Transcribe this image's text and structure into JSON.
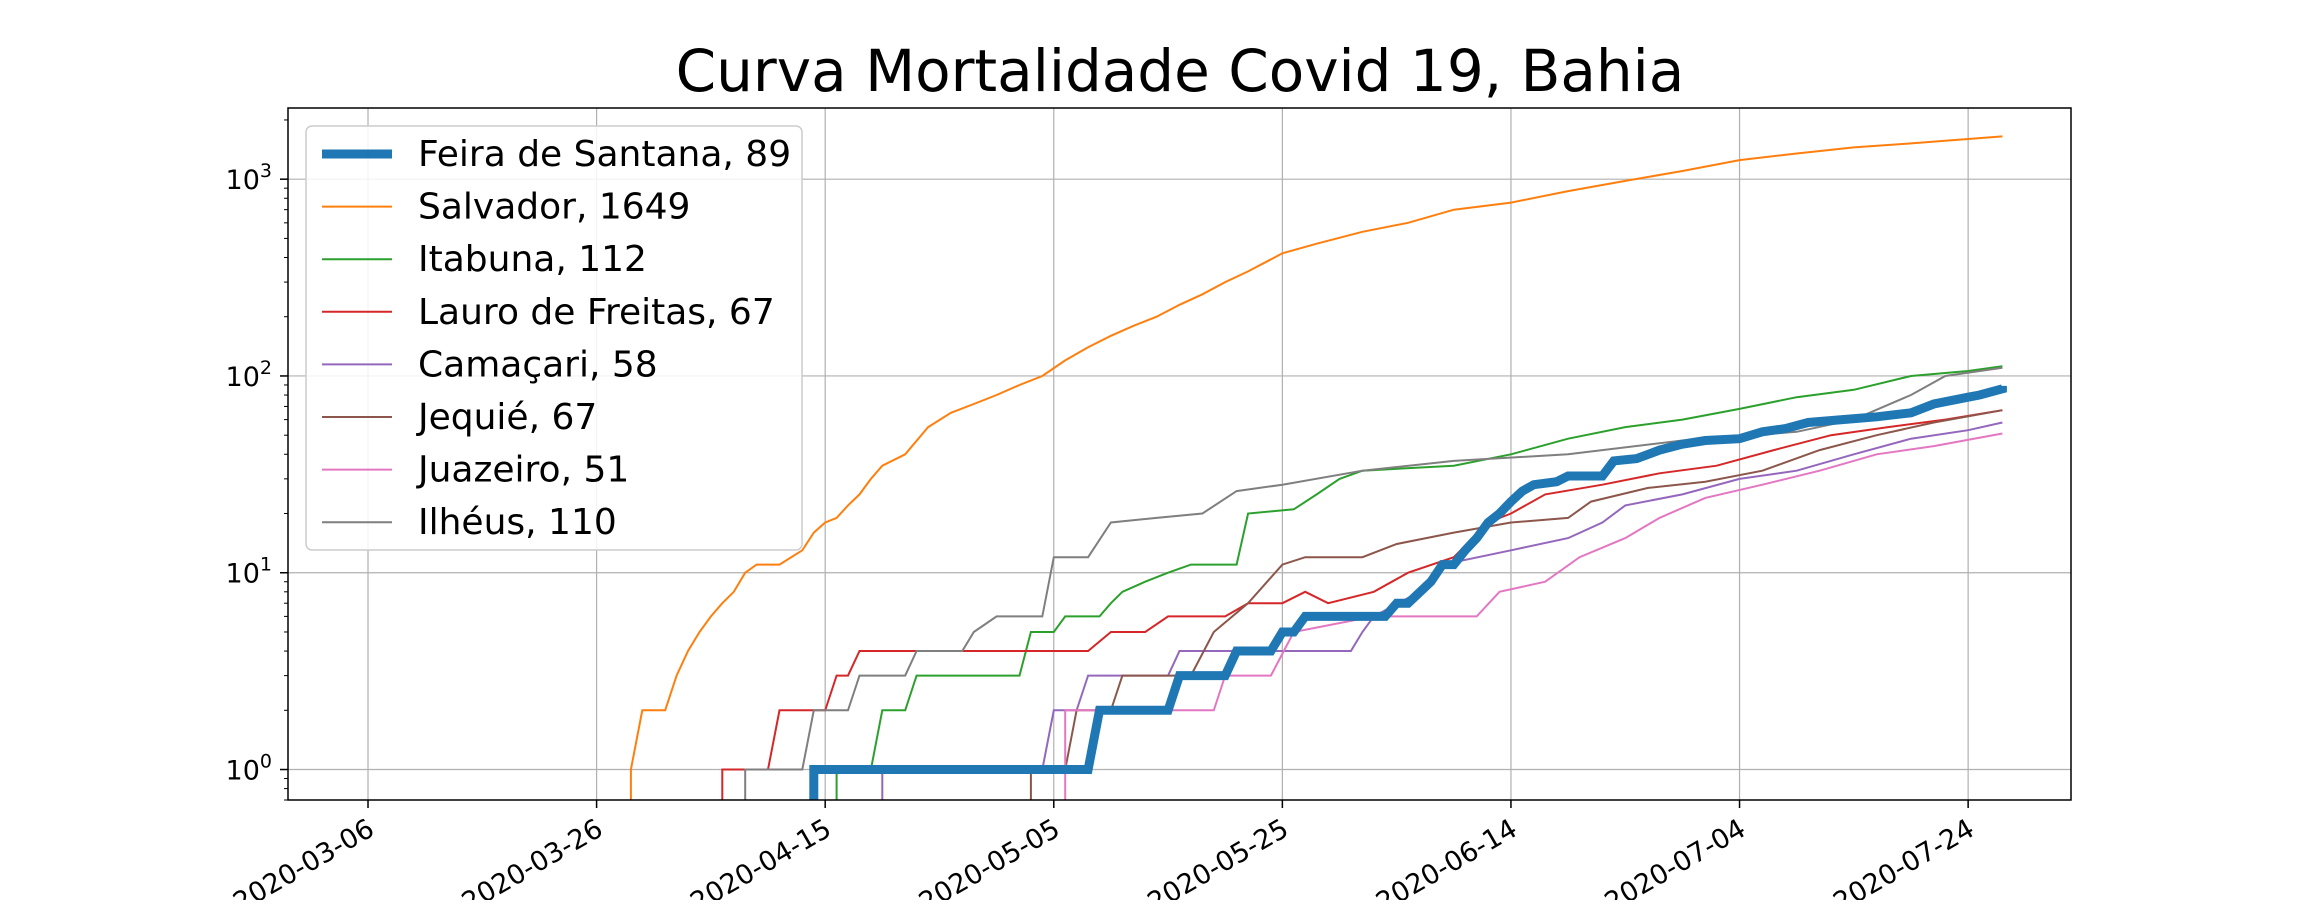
{
  "chart_data": {
    "type": "line",
    "title": "Curva Mortalidade Covid 19, Bahia",
    "xlabel": "",
    "ylabel": "",
    "yscale": "log",
    "ylim": [
      0.7,
      2300
    ],
    "xlim": [
      "2020-02-28",
      "2020-08-02"
    ],
    "grid": true,
    "legend_position": "top-left",
    "x_ticks": [
      "2020-03-06",
      "2020-03-26",
      "2020-04-15",
      "2020-05-05",
      "2020-05-25",
      "2020-06-14",
      "2020-07-04",
      "2020-07-24"
    ],
    "y_ticks": [
      {
        "value": 1,
        "base": "10",
        "exp": "0"
      },
      {
        "value": 10,
        "base": "10",
        "exp": "1"
      },
      {
        "value": 100,
        "base": "10",
        "exp": "2"
      },
      {
        "value": 1000,
        "base": "10",
        "exp": "3"
      }
    ],
    "series": [
      {
        "name": "Feira de Santana, 89",
        "color": "#1f77b4",
        "width": "thick",
        "points": [
          [
            "2020-04-14",
            0.7
          ],
          [
            "2020-04-14",
            1
          ],
          [
            "2020-05-08",
            1
          ],
          [
            "2020-05-09",
            2
          ],
          [
            "2020-05-15",
            2
          ],
          [
            "2020-05-16",
            3
          ],
          [
            "2020-05-20",
            3
          ],
          [
            "2020-05-21",
            4
          ],
          [
            "2020-05-24",
            4
          ],
          [
            "2020-05-25",
            5
          ],
          [
            "2020-05-26",
            5
          ],
          [
            "2020-05-27",
            6
          ],
          [
            "2020-06-03",
            6
          ],
          [
            "2020-06-04",
            7
          ],
          [
            "2020-06-05",
            7
          ],
          [
            "2020-06-07",
            9
          ],
          [
            "2020-06-08",
            11
          ],
          [
            "2020-06-09",
            11
          ],
          [
            "2020-06-10",
            13
          ],
          [
            "2020-06-11",
            15
          ],
          [
            "2020-06-12",
            18
          ],
          [
            "2020-06-13",
            20
          ],
          [
            "2020-06-14",
            23
          ],
          [
            "2020-06-15",
            26
          ],
          [
            "2020-06-16",
            28
          ],
          [
            "2020-06-18",
            29
          ],
          [
            "2020-06-19",
            31
          ],
          [
            "2020-06-22",
            31
          ],
          [
            "2020-06-23",
            37
          ],
          [
            "2020-06-25",
            38
          ],
          [
            "2020-06-27",
            42
          ],
          [
            "2020-06-29",
            45
          ],
          [
            "2020-07-01",
            47
          ],
          [
            "2020-07-04",
            48
          ],
          [
            "2020-07-06",
            52
          ],
          [
            "2020-07-08",
            54
          ],
          [
            "2020-07-10",
            58
          ],
          [
            "2020-07-13",
            60
          ],
          [
            "2020-07-16",
            62
          ],
          [
            "2020-07-19",
            65
          ],
          [
            "2020-07-21",
            72
          ],
          [
            "2020-07-24",
            78
          ],
          [
            "2020-07-25",
            80
          ],
          [
            "2020-07-27",
            86
          ],
          [
            "2020-07-27",
            89
          ]
        ]
      },
      {
        "name": "Salvador, 1649",
        "color": "#ff7f0e",
        "width": "thin",
        "points": [
          [
            "2020-03-29",
            0.7
          ],
          [
            "2020-03-29",
            1
          ],
          [
            "2020-03-30",
            2
          ],
          [
            "2020-04-01",
            2
          ],
          [
            "2020-04-02",
            3
          ],
          [
            "2020-04-03",
            4
          ],
          [
            "2020-04-04",
            5
          ],
          [
            "2020-04-05",
            6
          ],
          [
            "2020-04-06",
            7
          ],
          [
            "2020-04-07",
            8
          ],
          [
            "2020-04-08",
            10
          ],
          [
            "2020-04-09",
            11
          ],
          [
            "2020-04-11",
            11
          ],
          [
            "2020-04-13",
            13
          ],
          [
            "2020-04-14",
            16
          ],
          [
            "2020-04-15",
            18
          ],
          [
            "2020-04-16",
            19
          ],
          [
            "2020-04-17",
            22
          ],
          [
            "2020-04-18",
            25
          ],
          [
            "2020-04-19",
            30
          ],
          [
            "2020-04-20",
            35
          ],
          [
            "2020-04-22",
            40
          ],
          [
            "2020-04-24",
            55
          ],
          [
            "2020-04-26",
            65
          ],
          [
            "2020-04-28",
            72
          ],
          [
            "2020-04-30",
            80
          ],
          [
            "2020-05-02",
            90
          ],
          [
            "2020-05-04",
            100
          ],
          [
            "2020-05-06",
            120
          ],
          [
            "2020-05-08",
            140
          ],
          [
            "2020-05-10",
            160
          ],
          [
            "2020-05-12",
            180
          ],
          [
            "2020-05-14",
            200
          ],
          [
            "2020-05-16",
            230
          ],
          [
            "2020-05-18",
            260
          ],
          [
            "2020-05-20",
            300
          ],
          [
            "2020-05-22",
            340
          ],
          [
            "2020-05-25",
            420
          ],
          [
            "2020-05-28",
            470
          ],
          [
            "2020-06-01",
            540
          ],
          [
            "2020-06-05",
            600
          ],
          [
            "2020-06-09",
            700
          ],
          [
            "2020-06-14",
            760
          ],
          [
            "2020-06-19",
            870
          ],
          [
            "2020-06-24",
            980
          ],
          [
            "2020-06-29",
            1100
          ],
          [
            "2020-07-04",
            1250
          ],
          [
            "2020-07-09",
            1350
          ],
          [
            "2020-07-14",
            1450
          ],
          [
            "2020-07-19",
            1520
          ],
          [
            "2020-07-24",
            1600
          ],
          [
            "2020-07-27",
            1649
          ]
        ]
      },
      {
        "name": "Itabuna, 112",
        "color": "#2ca02c",
        "width": "thin",
        "points": [
          [
            "2020-04-16",
            0.7
          ],
          [
            "2020-04-16",
            1
          ],
          [
            "2020-04-19",
            1
          ],
          [
            "2020-04-20",
            2
          ],
          [
            "2020-04-22",
            2
          ],
          [
            "2020-04-23",
            3
          ],
          [
            "2020-05-02",
            3
          ],
          [
            "2020-05-03",
            5
          ],
          [
            "2020-05-05",
            5
          ],
          [
            "2020-05-06",
            6
          ],
          [
            "2020-05-09",
            6
          ],
          [
            "2020-05-10",
            7
          ],
          [
            "2020-05-11",
            8
          ],
          [
            "2020-05-13",
            9
          ],
          [
            "2020-05-15",
            10
          ],
          [
            "2020-05-17",
            11
          ],
          [
            "2020-05-21",
            11
          ],
          [
            "2020-05-22",
            20
          ],
          [
            "2020-05-26",
            21
          ],
          [
            "2020-05-28",
            25
          ],
          [
            "2020-05-30",
            30
          ],
          [
            "2020-06-01",
            33
          ],
          [
            "2020-06-09",
            35
          ],
          [
            "2020-06-14",
            40
          ],
          [
            "2020-06-19",
            48
          ],
          [
            "2020-06-24",
            55
          ],
          [
            "2020-06-29",
            60
          ],
          [
            "2020-07-04",
            68
          ],
          [
            "2020-07-09",
            78
          ],
          [
            "2020-07-14",
            85
          ],
          [
            "2020-07-19",
            100
          ],
          [
            "2020-07-24",
            106
          ],
          [
            "2020-07-27",
            112
          ]
        ]
      },
      {
        "name": "Lauro de Freitas, 67",
        "color": "#d62728",
        "width": "thin",
        "points": [
          [
            "2020-04-06",
            0.7
          ],
          [
            "2020-04-06",
            1
          ],
          [
            "2020-04-10",
            1
          ],
          [
            "2020-04-11",
            2
          ],
          [
            "2020-04-15",
            2
          ],
          [
            "2020-04-16",
            3
          ],
          [
            "2020-04-17",
            3
          ],
          [
            "2020-04-18",
            4
          ],
          [
            "2020-05-08",
            4
          ],
          [
            "2020-05-10",
            5
          ],
          [
            "2020-05-13",
            5
          ],
          [
            "2020-05-15",
            6
          ],
          [
            "2020-05-20",
            6
          ],
          [
            "2020-05-22",
            7
          ],
          [
            "2020-05-25",
            7
          ],
          [
            "2020-05-27",
            8
          ],
          [
            "2020-05-29",
            7
          ],
          [
            "2020-06-02",
            8
          ],
          [
            "2020-06-05",
            10
          ],
          [
            "2020-06-09",
            12
          ],
          [
            "2020-06-12",
            18
          ],
          [
            "2020-06-14",
            20
          ],
          [
            "2020-06-17",
            25
          ],
          [
            "2020-06-22",
            28
          ],
          [
            "2020-06-27",
            32
          ],
          [
            "2020-07-02",
            35
          ],
          [
            "2020-07-07",
            42
          ],
          [
            "2020-07-12",
            50
          ],
          [
            "2020-07-17",
            55
          ],
          [
            "2020-07-22",
            60
          ],
          [
            "2020-07-27",
            67
          ]
        ]
      },
      {
        "name": "Camaçari, 58",
        "color": "#9467bd",
        "width": "thin",
        "points": [
          [
            "2020-04-20",
            0.7
          ],
          [
            "2020-04-20",
            1
          ],
          [
            "2020-05-04",
            1
          ],
          [
            "2020-05-05",
            2
          ],
          [
            "2020-05-07",
            2
          ],
          [
            "2020-05-08",
            3
          ],
          [
            "2020-05-15",
            3
          ],
          [
            "2020-05-16",
            4
          ],
          [
            "2020-05-31",
            4
          ],
          [
            "2020-06-01",
            5
          ],
          [
            "2020-06-02",
            6
          ],
          [
            "2020-06-06",
            8
          ],
          [
            "2020-06-08",
            11
          ],
          [
            "2020-06-14",
            13
          ],
          [
            "2020-06-19",
            15
          ],
          [
            "2020-06-22",
            18
          ],
          [
            "2020-06-24",
            22
          ],
          [
            "2020-06-29",
            25
          ],
          [
            "2020-07-04",
            30
          ],
          [
            "2020-07-09",
            33
          ],
          [
            "2020-07-14",
            40
          ],
          [
            "2020-07-19",
            48
          ],
          [
            "2020-07-24",
            53
          ],
          [
            "2020-07-27",
            58
          ]
        ]
      },
      {
        "name": "Jequié, 67",
        "color": "#8c564b",
        "width": "thin",
        "points": [
          [
            "2020-05-03",
            0.7
          ],
          [
            "2020-05-03",
            1
          ],
          [
            "2020-05-06",
            1
          ],
          [
            "2020-05-07",
            2
          ],
          [
            "2020-05-10",
            2
          ],
          [
            "2020-05-11",
            3
          ],
          [
            "2020-05-17",
            3
          ],
          [
            "2020-05-19",
            5
          ],
          [
            "2020-05-22",
            7
          ],
          [
            "2020-05-25",
            11
          ],
          [
            "2020-05-27",
            12
          ],
          [
            "2020-06-01",
            12
          ],
          [
            "2020-06-04",
            14
          ],
          [
            "2020-06-09",
            16
          ],
          [
            "2020-06-14",
            18
          ],
          [
            "2020-06-19",
            19
          ],
          [
            "2020-06-21",
            23
          ],
          [
            "2020-06-26",
            27
          ],
          [
            "2020-07-01",
            29
          ],
          [
            "2020-07-06",
            33
          ],
          [
            "2020-07-11",
            42
          ],
          [
            "2020-07-16",
            50
          ],
          [
            "2020-07-21",
            58
          ],
          [
            "2020-07-27",
            67
          ]
        ]
      },
      {
        "name": "Juazeiro, 51",
        "color": "#e377c2",
        "width": "thin",
        "points": [
          [
            "2020-05-06",
            0.7
          ],
          [
            "2020-05-06",
            2
          ],
          [
            "2020-05-14",
            2
          ],
          [
            "2020-05-19",
            2
          ],
          [
            "2020-05-20",
            3
          ],
          [
            "2020-05-24",
            3
          ],
          [
            "2020-05-26",
            5
          ],
          [
            "2020-06-02",
            6
          ],
          [
            "2020-06-09",
            6
          ],
          [
            "2020-06-11",
            6
          ],
          [
            "2020-06-13",
            8
          ],
          [
            "2020-06-17",
            9
          ],
          [
            "2020-06-20",
            12
          ],
          [
            "2020-06-24",
            15
          ],
          [
            "2020-06-27",
            19
          ],
          [
            "2020-07-01",
            24
          ],
          [
            "2020-07-06",
            28
          ],
          [
            "2020-07-11",
            33
          ],
          [
            "2020-07-16",
            40
          ],
          [
            "2020-07-21",
            44
          ],
          [
            "2020-07-27",
            51
          ]
        ]
      },
      {
        "name": "Ilhéus, 110",
        "color": "#7f7f7f",
        "width": "thin",
        "points": [
          [
            "2020-04-08",
            0.7
          ],
          [
            "2020-04-08",
            1
          ],
          [
            "2020-04-13",
            1
          ],
          [
            "2020-04-14",
            2
          ],
          [
            "2020-04-17",
            2
          ],
          [
            "2020-04-18",
            3
          ],
          [
            "2020-04-22",
            3
          ],
          [
            "2020-04-23",
            4
          ],
          [
            "2020-04-27",
            4
          ],
          [
            "2020-04-28",
            5
          ],
          [
            "2020-04-30",
            6
          ],
          [
            "2020-05-04",
            6
          ],
          [
            "2020-05-05",
            12
          ],
          [
            "2020-05-08",
            12
          ],
          [
            "2020-05-10",
            18
          ],
          [
            "2020-05-14",
            19
          ],
          [
            "2020-05-18",
            20
          ],
          [
            "2020-05-21",
            26
          ],
          [
            "2020-05-25",
            28
          ],
          [
            "2020-06-01",
            33
          ],
          [
            "2020-06-09",
            37
          ],
          [
            "2020-06-19",
            40
          ],
          [
            "2020-06-29",
            47
          ],
          [
            "2020-07-09",
            52
          ],
          [
            "2020-07-14",
            60
          ],
          [
            "2020-07-19",
            80
          ],
          [
            "2020-07-22",
            100
          ],
          [
            "2020-07-27",
            110
          ]
        ]
      }
    ]
  }
}
